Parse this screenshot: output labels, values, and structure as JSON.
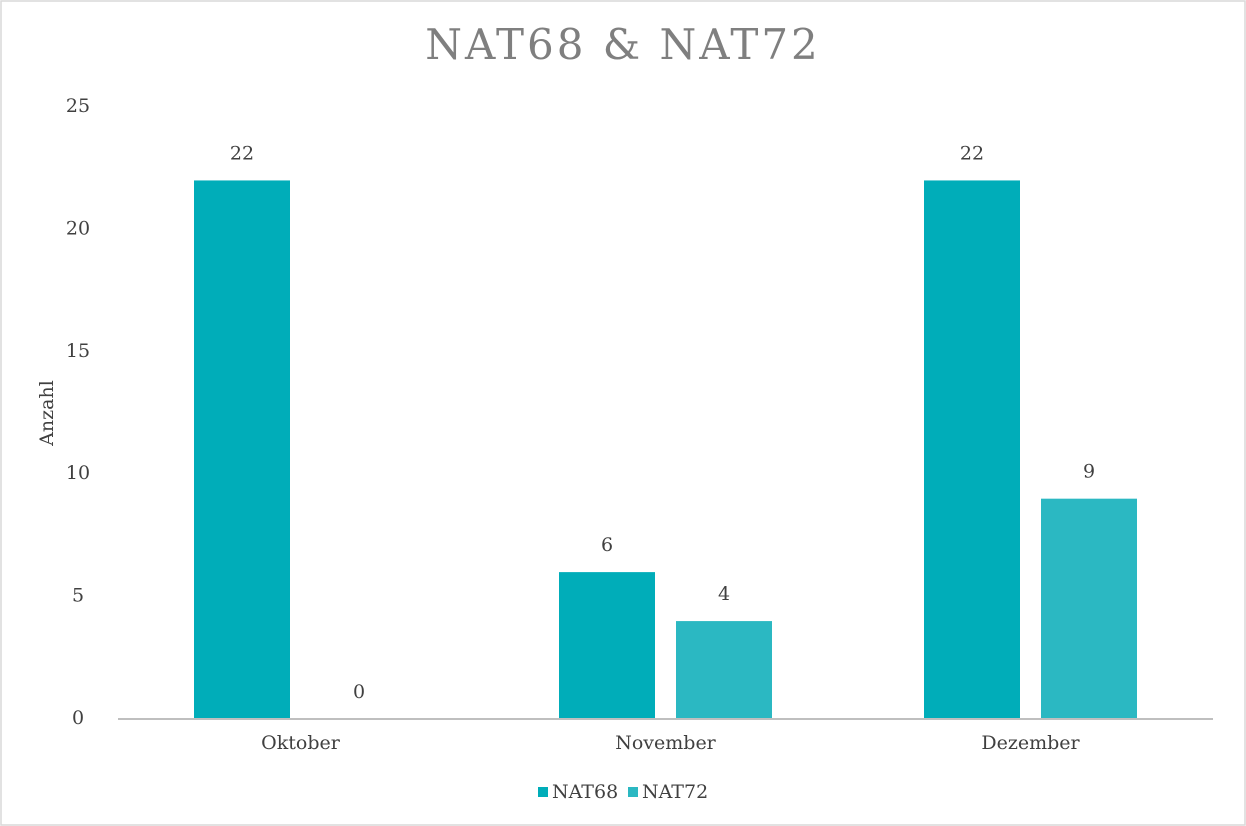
{
  "chart_data": {
    "type": "bar",
    "title": "NAT68 & NAT72",
    "y_label": "Anzahl",
    "categories": [
      "Oktober",
      "November",
      "Dezember"
    ],
    "series": [
      {
        "name": "NAT68",
        "color": "#00adb9",
        "values": [
          22,
          6,
          22
        ]
      },
      {
        "name": "NAT72",
        "color": "#2bb8c2",
        "values": [
          0,
          4,
          9
        ]
      }
    ],
    "ylim": [
      0,
      25
    ],
    "yticks": [
      0,
      5,
      10,
      15,
      20,
      25
    ],
    "grid": false,
    "legend": "bottom"
  }
}
